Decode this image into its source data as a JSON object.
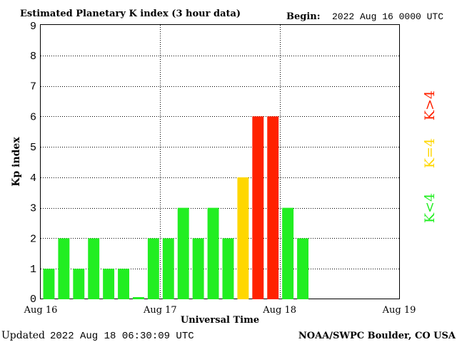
{
  "header": {
    "title": "Estimated Planetary K index (3 hour data)",
    "begin_label": "Begin:",
    "begin_value": "2022 Aug 16 0000 UTC"
  },
  "footer": {
    "updated_label": "Updated",
    "updated_value": "2022 Aug 18 06:30:09 UTC",
    "source": "NOAA/SWPC Boulder, CO USA"
  },
  "legend": {
    "low": "K<4",
    "mid": "K=4",
    "high": "K>4"
  },
  "colors": {
    "low": "#22ee22",
    "mid": "#ffd700",
    "high": "#ff2200",
    "axis": "#000000",
    "grid": "#000000"
  },
  "chart_data": {
    "type": "bar",
    "title": "Estimated Planetary K index (3 hour data)",
    "xlabel": "Universal Time",
    "ylabel": "Kp index",
    "ylim": [
      0,
      9
    ],
    "yticks": [
      "0",
      "1",
      "2",
      "3",
      "4",
      "5",
      "6",
      "7",
      "8",
      "9"
    ],
    "xticks": [
      "Aug 16",
      "Aug 17",
      "Aug 18",
      "Aug 19"
    ],
    "interval_hours": 3,
    "grid": true,
    "values": [
      1,
      2,
      1,
      2,
      1,
      1,
      0.07,
      2,
      2,
      3,
      2,
      3,
      2,
      4,
      6,
      6,
      3,
      2
    ]
  }
}
